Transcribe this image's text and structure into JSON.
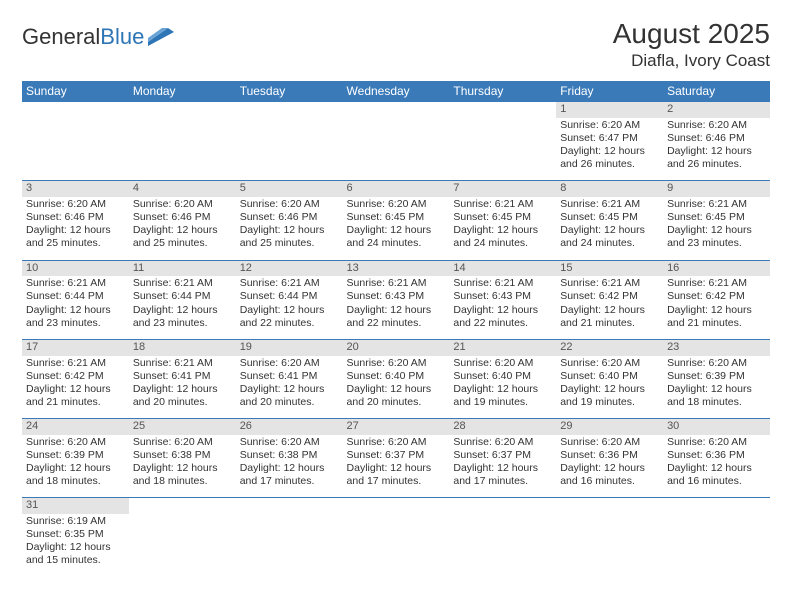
{
  "logo": {
    "text1": "General",
    "text2": "Blue"
  },
  "title": "August 2025",
  "location": "Diafla, Ivory Coast",
  "colors": {
    "header_bg": "#3a7ab8",
    "header_text": "#ffffff",
    "daynum_bg": "#e4e4e4",
    "border": "#3a7ab8",
    "text": "#333333",
    "logo_blue": "#2e75b6"
  },
  "weekdays": [
    "Sunday",
    "Monday",
    "Tuesday",
    "Wednesday",
    "Thursday",
    "Friday",
    "Saturday"
  ],
  "weeks": [
    [
      {
        "n": "",
        "sr": "",
        "ss": "",
        "dl": ""
      },
      {
        "n": "",
        "sr": "",
        "ss": "",
        "dl": ""
      },
      {
        "n": "",
        "sr": "",
        "ss": "",
        "dl": ""
      },
      {
        "n": "",
        "sr": "",
        "ss": "",
        "dl": ""
      },
      {
        "n": "",
        "sr": "",
        "ss": "",
        "dl": ""
      },
      {
        "n": "1",
        "sr": "Sunrise: 6:20 AM",
        "ss": "Sunset: 6:47 PM",
        "dl": "Daylight: 12 hours and 26 minutes."
      },
      {
        "n": "2",
        "sr": "Sunrise: 6:20 AM",
        "ss": "Sunset: 6:46 PM",
        "dl": "Daylight: 12 hours and 26 minutes."
      }
    ],
    [
      {
        "n": "3",
        "sr": "Sunrise: 6:20 AM",
        "ss": "Sunset: 6:46 PM",
        "dl": "Daylight: 12 hours and 25 minutes."
      },
      {
        "n": "4",
        "sr": "Sunrise: 6:20 AM",
        "ss": "Sunset: 6:46 PM",
        "dl": "Daylight: 12 hours and 25 minutes."
      },
      {
        "n": "5",
        "sr": "Sunrise: 6:20 AM",
        "ss": "Sunset: 6:46 PM",
        "dl": "Daylight: 12 hours and 25 minutes."
      },
      {
        "n": "6",
        "sr": "Sunrise: 6:20 AM",
        "ss": "Sunset: 6:45 PM",
        "dl": "Daylight: 12 hours and 24 minutes."
      },
      {
        "n": "7",
        "sr": "Sunrise: 6:21 AM",
        "ss": "Sunset: 6:45 PM",
        "dl": "Daylight: 12 hours and 24 minutes."
      },
      {
        "n": "8",
        "sr": "Sunrise: 6:21 AM",
        "ss": "Sunset: 6:45 PM",
        "dl": "Daylight: 12 hours and 24 minutes."
      },
      {
        "n": "9",
        "sr": "Sunrise: 6:21 AM",
        "ss": "Sunset: 6:45 PM",
        "dl": "Daylight: 12 hours and 23 minutes."
      }
    ],
    [
      {
        "n": "10",
        "sr": "Sunrise: 6:21 AM",
        "ss": "Sunset: 6:44 PM",
        "dl": "Daylight: 12 hours and 23 minutes."
      },
      {
        "n": "11",
        "sr": "Sunrise: 6:21 AM",
        "ss": "Sunset: 6:44 PM",
        "dl": "Daylight: 12 hours and 23 minutes."
      },
      {
        "n": "12",
        "sr": "Sunrise: 6:21 AM",
        "ss": "Sunset: 6:44 PM",
        "dl": "Daylight: 12 hours and 22 minutes."
      },
      {
        "n": "13",
        "sr": "Sunrise: 6:21 AM",
        "ss": "Sunset: 6:43 PM",
        "dl": "Daylight: 12 hours and 22 minutes."
      },
      {
        "n": "14",
        "sr": "Sunrise: 6:21 AM",
        "ss": "Sunset: 6:43 PM",
        "dl": "Daylight: 12 hours and 22 minutes."
      },
      {
        "n": "15",
        "sr": "Sunrise: 6:21 AM",
        "ss": "Sunset: 6:42 PM",
        "dl": "Daylight: 12 hours and 21 minutes."
      },
      {
        "n": "16",
        "sr": "Sunrise: 6:21 AM",
        "ss": "Sunset: 6:42 PM",
        "dl": "Daylight: 12 hours and 21 minutes."
      }
    ],
    [
      {
        "n": "17",
        "sr": "Sunrise: 6:21 AM",
        "ss": "Sunset: 6:42 PM",
        "dl": "Daylight: 12 hours and 21 minutes."
      },
      {
        "n": "18",
        "sr": "Sunrise: 6:21 AM",
        "ss": "Sunset: 6:41 PM",
        "dl": "Daylight: 12 hours and 20 minutes."
      },
      {
        "n": "19",
        "sr": "Sunrise: 6:20 AM",
        "ss": "Sunset: 6:41 PM",
        "dl": "Daylight: 12 hours and 20 minutes."
      },
      {
        "n": "20",
        "sr": "Sunrise: 6:20 AM",
        "ss": "Sunset: 6:40 PM",
        "dl": "Daylight: 12 hours and 20 minutes."
      },
      {
        "n": "21",
        "sr": "Sunrise: 6:20 AM",
        "ss": "Sunset: 6:40 PM",
        "dl": "Daylight: 12 hours and 19 minutes."
      },
      {
        "n": "22",
        "sr": "Sunrise: 6:20 AM",
        "ss": "Sunset: 6:40 PM",
        "dl": "Daylight: 12 hours and 19 minutes."
      },
      {
        "n": "23",
        "sr": "Sunrise: 6:20 AM",
        "ss": "Sunset: 6:39 PM",
        "dl": "Daylight: 12 hours and 18 minutes."
      }
    ],
    [
      {
        "n": "24",
        "sr": "Sunrise: 6:20 AM",
        "ss": "Sunset: 6:39 PM",
        "dl": "Daylight: 12 hours and 18 minutes."
      },
      {
        "n": "25",
        "sr": "Sunrise: 6:20 AM",
        "ss": "Sunset: 6:38 PM",
        "dl": "Daylight: 12 hours and 18 minutes."
      },
      {
        "n": "26",
        "sr": "Sunrise: 6:20 AM",
        "ss": "Sunset: 6:38 PM",
        "dl": "Daylight: 12 hours and 17 minutes."
      },
      {
        "n": "27",
        "sr": "Sunrise: 6:20 AM",
        "ss": "Sunset: 6:37 PM",
        "dl": "Daylight: 12 hours and 17 minutes."
      },
      {
        "n": "28",
        "sr": "Sunrise: 6:20 AM",
        "ss": "Sunset: 6:37 PM",
        "dl": "Daylight: 12 hours and 17 minutes."
      },
      {
        "n": "29",
        "sr": "Sunrise: 6:20 AM",
        "ss": "Sunset: 6:36 PM",
        "dl": "Daylight: 12 hours and 16 minutes."
      },
      {
        "n": "30",
        "sr": "Sunrise: 6:20 AM",
        "ss": "Sunset: 6:36 PM",
        "dl": "Daylight: 12 hours and 16 minutes."
      }
    ],
    [
      {
        "n": "31",
        "sr": "Sunrise: 6:19 AM",
        "ss": "Sunset: 6:35 PM",
        "dl": "Daylight: 12 hours and 15 minutes."
      },
      {
        "n": "",
        "sr": "",
        "ss": "",
        "dl": ""
      },
      {
        "n": "",
        "sr": "",
        "ss": "",
        "dl": ""
      },
      {
        "n": "",
        "sr": "",
        "ss": "",
        "dl": ""
      },
      {
        "n": "",
        "sr": "",
        "ss": "",
        "dl": ""
      },
      {
        "n": "",
        "sr": "",
        "ss": "",
        "dl": ""
      },
      {
        "n": "",
        "sr": "",
        "ss": "",
        "dl": ""
      }
    ]
  ]
}
